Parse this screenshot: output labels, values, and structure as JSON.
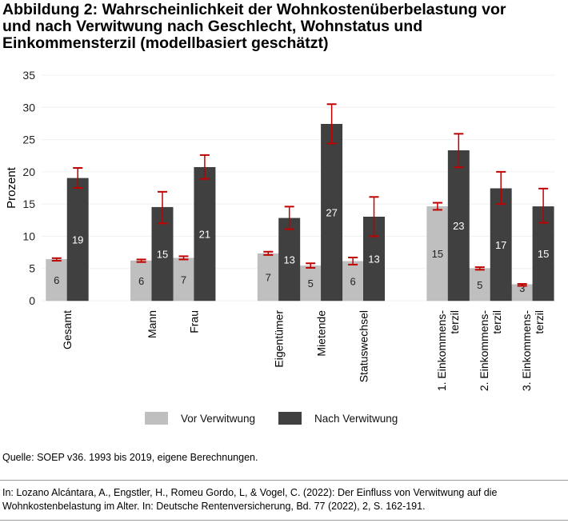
{
  "title": {
    "line1": "Abbildung 2:  Wahrscheinlichkeit der Wohnkostenüberbelastung vor",
    "line2": "und nach Verwitwung nach Geschlecht, Wohnstatus und",
    "line3": "Einkommensterzil (modellbasiert geschätzt)"
  },
  "chart_data": {
    "type": "bar",
    "ylabel": "Prozent",
    "ylim": [
      0,
      35
    ],
    "yticks": [
      0,
      5,
      10,
      15,
      20,
      25,
      30,
      35
    ],
    "grid": true,
    "legend_placement": "bottom",
    "categories": [
      [
        "Gesamt"
      ],
      [
        "Mann"
      ],
      [
        "Frau"
      ],
      [
        "Eigentümer"
      ],
      [
        "Mietende"
      ],
      [
        "Statuswechsel"
      ],
      [
        "1. Einkommens-",
        "terzil"
      ],
      [
        "2. Einkommens-",
        "terzil"
      ],
      [
        "3. Einkommens-",
        "terzil"
      ]
    ],
    "series": [
      {
        "name": "Vor Verwitwung",
        "color": "#bfbfbf",
        "label_color": "#222222",
        "values": [
          6.4,
          6.2,
          6.6,
          7.3,
          5.4,
          6.1,
          14.6,
          5.0,
          2.5
        ],
        "ci_low": [
          6.2,
          6.0,
          6.4,
          7.1,
          5.1,
          5.6,
          14.1,
          4.8,
          2.3
        ],
        "ci_high": [
          6.6,
          6.4,
          6.9,
          7.6,
          5.8,
          6.7,
          15.2,
          5.2,
          2.6
        ],
        "labels": [
          "6",
          "6",
          "7",
          "7",
          "5",
          "6",
          "15",
          "5",
          "3"
        ]
      },
      {
        "name": "Nach Verwitwung",
        "color": "#404040",
        "label_color": "#ffffff",
        "values": [
          19.0,
          14.5,
          20.7,
          12.8,
          27.4,
          13.0,
          23.3,
          17.4,
          14.6
        ],
        "ci_low": [
          17.5,
          12.0,
          18.9,
          11.1,
          24.4,
          10.0,
          20.7,
          15.0,
          12.1
        ],
        "ci_high": [
          20.6,
          16.9,
          22.6,
          14.6,
          30.5,
          16.1,
          25.9,
          20.0,
          17.4
        ],
        "labels": [
          "19",
          "15",
          "21",
          "13",
          "27",
          "13",
          "23",
          "17",
          "15"
        ]
      }
    ],
    "error_bar_color": "#c00000"
  },
  "source": "Quelle: SOEP v36. 1993 bis 2019, eigene Berechnungen.",
  "citation": {
    "line1": "In: Lozano Alcántara, A., Engstler, H., Romeu Gordo, L, & Vogel, C. (2022): Der Einfluss von Verwitwung auf die",
    "line2": "Wohnkostenbelastung im Alter. In: Deutsche Rentenversicherung, Bd. 77 (2022), 2, S. 162-191."
  }
}
